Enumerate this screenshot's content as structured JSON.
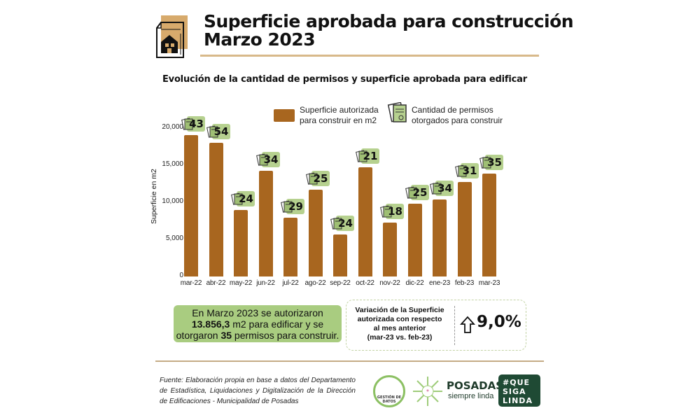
{
  "header": {
    "title_line1": "Superficie aprobada para construcción",
    "title_line2": "Marzo 2023",
    "subtitle": "Evolución de la cantidad de permisos y superficie aprobada para edificar"
  },
  "chart_data": {
    "type": "bar",
    "title": "Evolución de la cantidad de permisos y superficie aprobada para edificar",
    "ylabel": "Superficie en m2",
    "xlabel": "",
    "ylim": [
      0,
      20000
    ],
    "yticks": [
      "0",
      "5,000",
      "10,000",
      "15,000",
      "20,000"
    ],
    "categories": [
      "mar-22",
      "abr-22",
      "may-22",
      "jun-22",
      "jul-22",
      "ago-22",
      "sep-22",
      "oct-22",
      "nov-22",
      "dic-22",
      "ene-23",
      "feb-23",
      "mar-23"
    ],
    "series": [
      {
        "name": "Superficie autorizada para construir en m2",
        "values": [
          19100,
          18000,
          9000,
          14200,
          7900,
          11700,
          5650,
          14750,
          7250,
          9850,
          10350,
          12712,
          13856.3
        ]
      },
      {
        "name": "Cantidad de permisos otorgados para construir",
        "values": [
          43,
          54,
          24,
          34,
          29,
          25,
          24,
          21,
          18,
          25,
          34,
          31,
          35
        ]
      }
    ],
    "legend": {
      "position": "top",
      "items": [
        "Superficie autorizada para construir en m2",
        "Cantidad de permisos otorgados para construir"
      ]
    },
    "colors": {
      "bar": "#a8661f",
      "badge": "#b6d18f"
    }
  },
  "summary": {
    "p1": "En Marzo 2023 se autorizaron",
    "area": "13.856,3",
    "p2": " m2 para edificar y se",
    "p3": "otorgaron ",
    "permits": "35",
    "p4": " permisos para construir."
  },
  "variation": {
    "label_l1": "Variación de la Superficie",
    "label_l2": "autorizada con respecto",
    "label_l3": "al mes anterior",
    "label_l4": "(mar-23 vs. feb-23)",
    "value": "9,0%"
  },
  "footer": {
    "source": "Fuente: Elaboración propia en base a datos del Departamento de Estadística, Liquidaciones y Digitalización de la Dirección de Edificaciones - Municipalidad de Posadas",
    "logo1": "GESTIÓN DE DATOS",
    "logo2_name": "POSADAS",
    "logo2_tag": "siempre linda",
    "logo3": "#QUE SIGA LINDA"
  }
}
